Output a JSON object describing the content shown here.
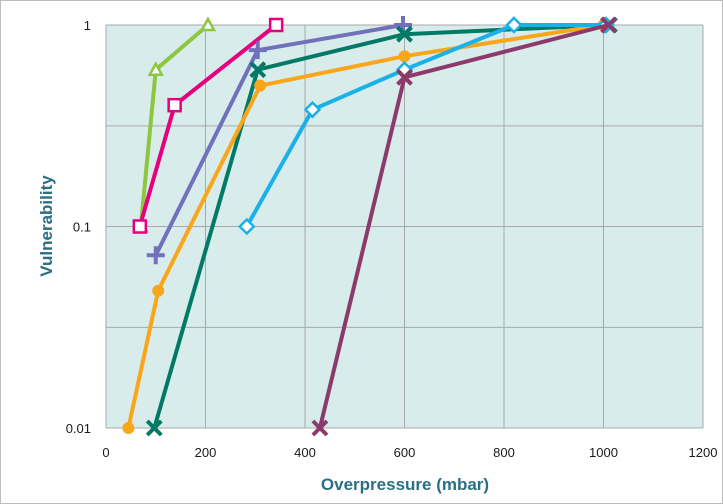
{
  "chart_data": {
    "type": "line",
    "title": "",
    "xlabel": "Overpressure (mbar)",
    "ylabel": "Vulnerability",
    "xlim": [
      0,
      1200
    ],
    "ylim": [
      0.01,
      1
    ],
    "yscale": "log",
    "grid": true,
    "xticks": [
      "0",
      "200",
      "400",
      "600",
      "800",
      "1000",
      "1200"
    ],
    "yticks": [
      "0.01",
      "0.1",
      "1"
    ],
    "colors": {
      "plot_bg": "#d8ecec",
      "grid": "#a9a9a9",
      "axis_title": "#2b6f86"
    },
    "series": [
      {
        "color": "#8dc63f",
        "marker": "triangle",
        "x": [
          70,
          100,
          205
        ],
        "y": [
          0.1,
          0.6,
          1
        ]
      },
      {
        "color": "#e6007e",
        "marker": "square",
        "x": [
          68,
          138,
          342
        ],
        "y": [
          0.1,
          0.4,
          1
        ]
      },
      {
        "color": "#7070bb",
        "marker": "plus",
        "x": [
          100,
          305,
          597
        ],
        "y": [
          0.072,
          0.75,
          1
        ]
      },
      {
        "color": "#007a66",
        "marker": "x",
        "x": [
          97,
          305,
          600,
          1012
        ],
        "y": [
          0.01,
          0.6,
          0.9,
          1
        ]
      },
      {
        "color": "#f9a61a",
        "marker": "circle",
        "x": [
          45,
          105,
          310,
          600,
          1000
        ],
        "y": [
          0.01,
          0.048,
          0.5,
          0.7,
          1
        ]
      },
      {
        "color": "#1ab0e8",
        "marker": "diamond",
        "x": [
          283,
          415,
          600,
          820,
          1005
        ],
        "y": [
          0.1,
          0.38,
          0.6,
          1,
          1
        ]
      },
      {
        "color": "#8c3a6b",
        "marker": "x",
        "x": [
          430,
          600,
          1010
        ],
        "y": [
          0.01,
          0.55,
          1
        ]
      }
    ]
  }
}
